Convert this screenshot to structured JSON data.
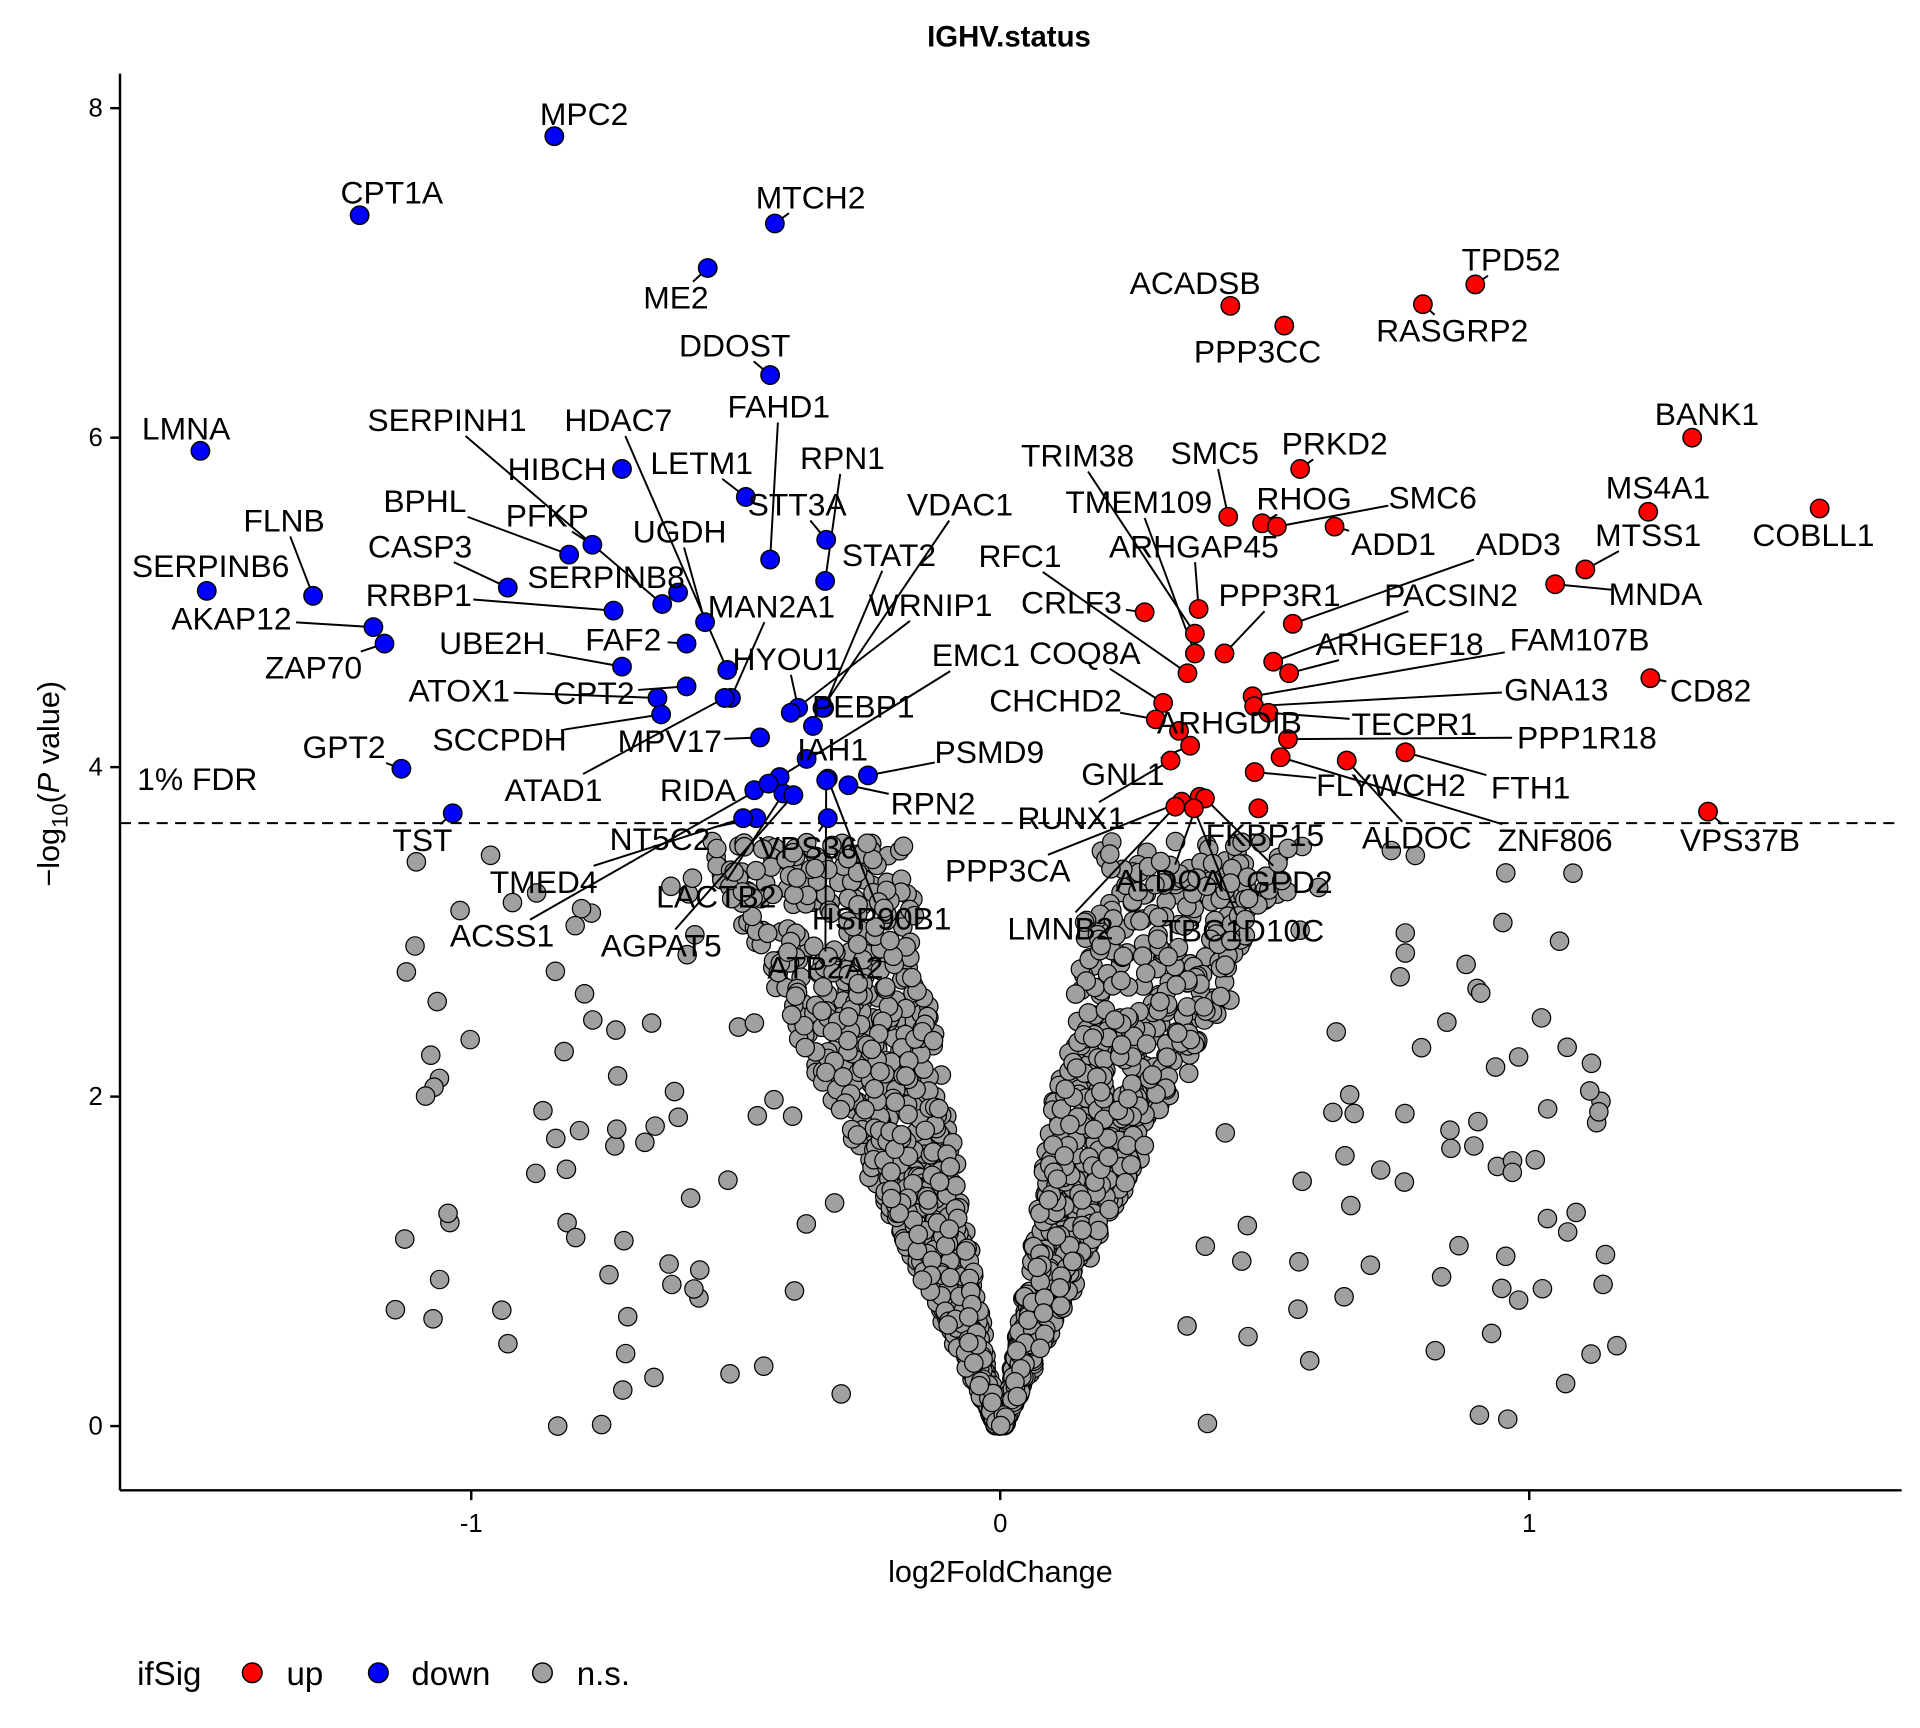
{
  "chart_data": {
    "type": "scatter",
    "title": "IGHV.status",
    "xlabel": "log2FoldChange",
    "ylabel_prefix": "−log",
    "ylabel_sub": "10",
    "ylabel_open": "(",
    "ylabel_italic": "P",
    "ylabel_suffix": " value)",
    "xlim": [
      -1.664,
      1.704
    ],
    "ylim": [
      -0.39,
      8.21
    ],
    "xticks": [
      -1,
      0,
      1
    ],
    "xtick_labels": [
      "-1",
      "0",
      "1"
    ],
    "yticks": [
      0,
      2,
      4,
      6,
      8
    ],
    "ytick_labels": [
      "0",
      "2",
      "4",
      "6",
      "8"
    ],
    "grid": false,
    "fdr_threshold": 3.66,
    "fdr_label": "1% FDR",
    "colors": {
      "up": "#ff0000",
      "down": "#0000ff",
      "ns": "#a0a0a0"
    },
    "legend": {
      "position": "bottom-left",
      "title": "ifSig",
      "entries": [
        {
          "key": "up",
          "label": "up",
          "color": "#ff0000"
        },
        {
          "key": "down",
          "label": "down",
          "color": "#0000ff"
        },
        {
          "key": "ns",
          "label": "n.s.",
          "color": "#a0a0a0"
        }
      ]
    },
    "ns_point_count": 2200,
    "points": [
      {
        "gene": "MPC2",
        "x": -0.843,
        "y": 7.83,
        "sig": "down"
      },
      {
        "gene": "CPT1A",
        "x": -1.211,
        "y": 7.35,
        "sig": "down"
      },
      {
        "gene": "MTCH2",
        "x": -0.426,
        "y": 7.3,
        "sig": "down"
      },
      {
        "gene": "ME2",
        "x": -0.553,
        "y": 7.03,
        "sig": "down"
      },
      {
        "gene": "DDOST",
        "x": -0.435,
        "y": 6.38,
        "sig": "down"
      },
      {
        "gene": "LMNA",
        "x": -1.512,
        "y": 5.92,
        "sig": "down"
      },
      {
        "gene": "HIBCH",
        "x": -0.715,
        "y": 5.81,
        "sig": "down"
      },
      {
        "gene": "LETM1",
        "x": -0.481,
        "y": 5.64,
        "sig": "down"
      },
      {
        "gene": "FAHD1",
        "x": -0.435,
        "y": 5.26,
        "sig": "down"
      },
      {
        "gene": "BPHL",
        "x": -0.815,
        "y": 5.29,
        "sig": "down"
      },
      {
        "gene": "PFKP",
        "x": -0.771,
        "y": 5.35,
        "sig": "down"
      },
      {
        "gene": "CASP3",
        "x": -0.931,
        "y": 5.09,
        "sig": "down"
      },
      {
        "gene": "SERPINB8",
        "x": -0.609,
        "y": 5.06,
        "sig": "down"
      },
      {
        "gene": "SERPINH1",
        "x": -0.639,
        "y": 4.99,
        "sig": "down"
      },
      {
        "gene": "HDAC7",
        "x": -0.516,
        "y": 4.59,
        "sig": "down"
      },
      {
        "gene": "UGDH",
        "x": -0.558,
        "y": 4.88,
        "sig": "down"
      },
      {
        "gene": "RRBP1",
        "x": -0.731,
        "y": 4.95,
        "sig": "down"
      },
      {
        "gene": "UBE2H",
        "x": -0.715,
        "y": 4.61,
        "sig": "down"
      },
      {
        "gene": "FAF2",
        "x": -0.593,
        "y": 4.75,
        "sig": "down"
      },
      {
        "gene": "ATOX1",
        "x": -0.648,
        "y": 4.42,
        "sig": "down"
      },
      {
        "gene": "CPT2",
        "x": -0.593,
        "y": 4.49,
        "sig": "down"
      },
      {
        "gene": "SCCPDH",
        "x": -0.641,
        "y": 4.32,
        "sig": "down"
      },
      {
        "gene": "MAN2A1",
        "x": -0.509,
        "y": 4.42,
        "sig": "down"
      },
      {
        "gene": "ATAD1",
        "x": -0.521,
        "y": 4.42,
        "sig": "down"
      },
      {
        "gene": "HYOU1",
        "x": -0.382,
        "y": 4.36,
        "sig": "down"
      },
      {
        "gene": "MPV17",
        "x": -0.454,
        "y": 4.18,
        "sig": "down"
      },
      {
        "gene": "RPN1",
        "x": -0.331,
        "y": 5.13,
        "sig": "down"
      },
      {
        "gene": "STT3A",
        "x": -0.329,
        "y": 5.38,
        "sig": "down"
      },
      {
        "gene": "STAT2",
        "x": -0.333,
        "y": 4.36,
        "sig": "down"
      },
      {
        "gene": "VDAC1",
        "x": -0.336,
        "y": 4.36,
        "sig": "down"
      },
      {
        "gene": "WRNIP1",
        "x": -0.396,
        "y": 4.33,
        "sig": "down"
      },
      {
        "gene": "PEBP1",
        "x": -0.354,
        "y": 4.25,
        "sig": "down"
      },
      {
        "gene": "IAH1",
        "x": -0.366,
        "y": 4.05,
        "sig": "down"
      },
      {
        "gene": "EMC1",
        "x": -0.417,
        "y": 3.94,
        "sig": "down"
      },
      {
        "gene": "PSMD9",
        "x": -0.25,
        "y": 3.95,
        "sig": "down"
      },
      {
        "gene": "RPN2",
        "x": -0.287,
        "y": 3.89,
        "sig": "down"
      },
      {
        "gene": "RIDA",
        "x": -0.465,
        "y": 3.86,
        "sig": "down"
      },
      {
        "gene": "NT5C2",
        "x": -0.461,
        "y": 3.69,
        "sig": "down"
      },
      {
        "gene": "VPS36",
        "x": -0.326,
        "y": 3.69,
        "sig": "down"
      },
      {
        "gene": "TMED4",
        "x": -0.486,
        "y": 3.69,
        "sig": "down"
      },
      {
        "gene": "LACTB2",
        "x": -0.41,
        "y": 3.84,
        "sig": "down"
      },
      {
        "gene": "ACSS1",
        "x": -0.438,
        "y": 3.9,
        "sig": "down"
      },
      {
        "gene": "AGPAT5",
        "x": -0.391,
        "y": 3.83,
        "sig": "down"
      },
      {
        "gene": "HSP90B1",
        "x": -0.326,
        "y": 3.93,
        "sig": "down"
      },
      {
        "gene": "ATP2A2",
        "x": -0.329,
        "y": 3.92,
        "sig": "down"
      },
      {
        "gene": "GPT2",
        "x": -1.132,
        "y": 3.99,
        "sig": "down"
      },
      {
        "gene": "TST",
        "x": -1.035,
        "y": 3.72,
        "sig": "down"
      },
      {
        "gene": "FLNB",
        "x": -1.299,
        "y": 5.04,
        "sig": "down"
      },
      {
        "gene": "SERPINB6",
        "x": -1.5,
        "y": 5.07,
        "sig": "down"
      },
      {
        "gene": "AKAP12",
        "x": -1.185,
        "y": 4.85,
        "sig": "down"
      },
      {
        "gene": "ZAP70",
        "x": -1.164,
        "y": 4.75,
        "sig": "down"
      },
      {
        "gene": "ACADSB",
        "x": 0.435,
        "y": 6.8,
        "sig": "up"
      },
      {
        "gene": "TPD52",
        "x": 0.898,
        "y": 6.93,
        "sig": "up"
      },
      {
        "gene": "RASGRP2",
        "x": 0.799,
        "y": 6.81,
        "sig": "up"
      },
      {
        "gene": "PPP3CC",
        "x": 0.537,
        "y": 6.68,
        "sig": "up"
      },
      {
        "gene": "BANK1",
        "x": 1.308,
        "y": 6.0,
        "sig": "up"
      },
      {
        "gene": "PRKD2",
        "x": 0.567,
        "y": 5.81,
        "sig": "up"
      },
      {
        "gene": "TRIM38",
        "x": 0.368,
        "y": 4.81,
        "sig": "up"
      },
      {
        "gene": "SMC5",
        "x": 0.431,
        "y": 5.52,
        "sig": "up"
      },
      {
        "gene": "TMEM109",
        "x": 0.368,
        "y": 4.69,
        "sig": "up"
      },
      {
        "gene": "RHOG",
        "x": 0.495,
        "y": 5.48,
        "sig": "up"
      },
      {
        "gene": "SMC6",
        "x": 0.523,
        "y": 5.46,
        "sig": "up"
      },
      {
        "gene": "ADD1",
        "x": 0.632,
        "y": 5.46,
        "sig": "up"
      },
      {
        "gene": "ARHGAP45",
        "x": 0.375,
        "y": 4.96,
        "sig": "up"
      },
      {
        "gene": "RFC1",
        "x": 0.354,
        "y": 4.57,
        "sig": "up"
      },
      {
        "gene": "PPP3R1",
        "x": 0.424,
        "y": 4.69,
        "sig": "up"
      },
      {
        "gene": "ADD3",
        "x": 0.553,
        "y": 4.87,
        "sig": "up"
      },
      {
        "gene": "PACSIN2",
        "x": 0.516,
        "y": 4.64,
        "sig": "up"
      },
      {
        "gene": "CRLF3",
        "x": 0.273,
        "y": 4.94,
        "sig": "up"
      },
      {
        "gene": "ARHGEF18",
        "x": 0.546,
        "y": 4.57,
        "sig": "up"
      },
      {
        "gene": "FAM107B",
        "x": 0.477,
        "y": 4.43,
        "sig": "up"
      },
      {
        "gene": "COQ8A",
        "x": 0.308,
        "y": 4.39,
        "sig": "up"
      },
      {
        "gene": "MTSS1",
        "x": 1.106,
        "y": 5.2,
        "sig": "up"
      },
      {
        "gene": "COBLL1",
        "x": 1.549,
        "y": 5.57,
        "sig": "up"
      },
      {
        "gene": "MS4A1",
        "x": 1.225,
        "y": 5.55,
        "sig": "up"
      },
      {
        "gene": "MNDA",
        "x": 1.049,
        "y": 5.11,
        "sig": "up"
      },
      {
        "gene": "CD82",
        "x": 1.229,
        "y": 4.54,
        "sig": "up"
      },
      {
        "gene": "GNA13",
        "x": 0.48,
        "y": 4.37,
        "sig": "up"
      },
      {
        "gene": "CHCHD2",
        "x": 0.294,
        "y": 4.29,
        "sig": "up"
      },
      {
        "gene": "ARHGDIB",
        "x": 0.338,
        "y": 4.22,
        "sig": "up"
      },
      {
        "gene": "TECPR1",
        "x": 0.507,
        "y": 4.33,
        "sig": "up"
      },
      {
        "gene": "PPP1R18",
        "x": 0.544,
        "y": 4.17,
        "sig": "up"
      },
      {
        "gene": "GNL1",
        "x": 0.359,
        "y": 4.13,
        "sig": "up"
      },
      {
        "gene": "FLYWCH2",
        "x": 0.481,
        "y": 3.97,
        "sig": "up"
      },
      {
        "gene": "FTH1",
        "x": 0.766,
        "y": 4.09,
        "sig": "up"
      },
      {
        "gene": "RUNX1",
        "x": 0.322,
        "y": 4.04,
        "sig": "up"
      },
      {
        "gene": "FKBP15",
        "x": 0.488,
        "y": 3.75,
        "sig": "up"
      },
      {
        "gene": "ALDOC",
        "x": 0.655,
        "y": 4.04,
        "sig": "up"
      },
      {
        "gene": "ZNF806",
        "x": 0.53,
        "y": 4.06,
        "sig": "up"
      },
      {
        "gene": "VPS37B",
        "x": 1.338,
        "y": 3.73,
        "sig": "up"
      },
      {
        "gene": "PPP3CA",
        "x": 0.343,
        "y": 3.79,
        "sig": "up"
      },
      {
        "gene": "ALDOA",
        "x": 0.377,
        "y": 3.82,
        "sig": "up"
      },
      {
        "gene": "GPD2",
        "x": 0.387,
        "y": 3.81,
        "sig": "up"
      },
      {
        "gene": "LMNB2",
        "x": 0.331,
        "y": 3.76,
        "sig": "up"
      },
      {
        "gene": "TBC1D10C",
        "x": 0.366,
        "y": 3.75,
        "sig": "up"
      }
    ]
  }
}
